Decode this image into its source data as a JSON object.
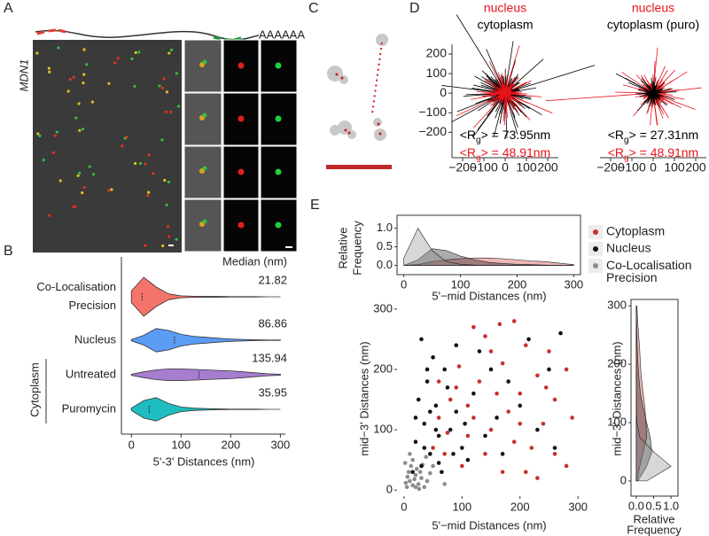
{
  "panel_labels": [
    "A",
    "B",
    "C",
    "D",
    "E"
  ],
  "panel_a": {
    "gene": "MDN1",
    "poly_a": "AAAAAA"
  },
  "chart_data": [
    {
      "type": "violin",
      "header": "Median (nm)",
      "categories": [
        [
          "Co-Localisation",
          "Precision"
        ],
        [
          "Nucleus"
        ],
        [
          "Untreated"
        ],
        [
          "Puromycin"
        ]
      ],
      "group_label": "Cytoplasm",
      "values": [
        21.82,
        86.86,
        135.94,
        35.95
      ],
      "colors": [
        "#f4736b",
        "#5b9cf5",
        "#a77dd0",
        "#1fbdbf"
      ],
      "x": [
        0,
        25,
        50,
        75,
        100,
        125,
        150,
        175,
        200,
        225,
        250,
        275,
        300
      ],
      "densities": [
        [
          0.3,
          1.0,
          0.5,
          0.15,
          0.05,
          0.03,
          0.02,
          0.02,
          0.01,
          0.01,
          0.01,
          0.0,
          0.0
        ],
        [
          0.03,
          0.25,
          0.6,
          0.5,
          0.3,
          0.2,
          0.15,
          0.1,
          0.06,
          0.04,
          0.02,
          0.01,
          0.01
        ],
        [
          0.03,
          0.15,
          0.25,
          0.3,
          0.3,
          0.28,
          0.25,
          0.22,
          0.2,
          0.15,
          0.1,
          0.05,
          0.03
        ],
        [
          0.06,
          0.45,
          0.6,
          0.3,
          0.12,
          0.06,
          0.04,
          0.02,
          0.01,
          0.01,
          0.01,
          0.0,
          0.0
        ]
      ],
      "xlabel": "5'-3' Distances (nm)",
      "xlim": [
        -20,
        310
      ],
      "xticks": [
        0,
        100,
        200,
        300
      ]
    },
    {
      "type": "star",
      "series": [
        {
          "name": "nucleus",
          "color": "#e8141b",
          "rg": 48.91,
          "rg_label": {
            "prefix": "<R",
            "sub": "g",
            "suffix": "> = 48.91nm"
          }
        },
        {
          "name": "cytoplasm",
          "color": "#000000",
          "rg": 73.95,
          "rg_label": {
            "prefix": "<R",
            "sub": "g",
            "suffix": "> = 73.95nm"
          }
        }
      ],
      "xlim": [
        -250,
        250
      ],
      "ylim": [
        -330,
        250
      ],
      "xticks": [
        {
          "value": -200,
          "label": "−200"
        },
        {
          "value": -100,
          "label": "−100"
        },
        0,
        100,
        200
      ],
      "yticks": [
        200,
        100,
        0,
        {
          "value": -100,
          "label": "−100"
        },
        {
          "value": -200,
          "label": "−200"
        }
      ]
    },
    {
      "type": "star",
      "series": [
        {
          "name": "nucleus",
          "color": "#e8141b",
          "rg": 48.91,
          "rg_label": {
            "prefix": "<R",
            "sub": "g",
            "suffix": "> = 48.91nm"
          }
        },
        {
          "name": "cytoplasm (puro)",
          "color": "#000000",
          "rg": 27.31,
          "rg_label": {
            "prefix": "<R",
            "sub": "g",
            "suffix": "> = 27.31nm"
          }
        }
      ],
      "xlim": [
        -250,
        250
      ],
      "ylim": [
        -330,
        250
      ],
      "xticks": [
        {
          "value": -200,
          "label": "−200"
        },
        {
          "value": -100,
          "label": "−100"
        },
        0,
        100,
        200
      ]
    },
    {
      "type": "density",
      "ylabel": [
        "Relative",
        "Frequency"
      ],
      "xlabel": "5'−mid Distances (nm)",
      "x": [
        0,
        25,
        50,
        75,
        100,
        125,
        150,
        175,
        200,
        225,
        250,
        275,
        300
      ],
      "series": [
        {
          "name": "Cytoplasm",
          "color": "#cc2e2e",
          "values": [
            0.0,
            0.02,
            0.1,
            0.15,
            0.18,
            0.2,
            0.2,
            0.18,
            0.15,
            0.12,
            0.1,
            0.06,
            0.02
          ]
        },
        {
          "name": "Nucleus",
          "color": "#111111",
          "values": [
            0.0,
            0.15,
            0.45,
            0.4,
            0.25,
            0.15,
            0.08,
            0.05,
            0.03,
            0.02,
            0.01,
            0.0,
            0.0
          ]
        },
        {
          "name": "Co-Localisation Precision",
          "color": "#8c8c8c",
          "values": [
            0.2,
            1.0,
            0.4,
            0.1,
            0.03,
            0.01,
            0.0,
            0.0,
            0.0,
            0.0,
            0.0,
            0.0,
            0.0
          ]
        }
      ],
      "xlim": [
        -12,
        312
      ],
      "ylim": [
        -0.25,
        1.35
      ],
      "xticks": [
        0,
        100,
        200,
        300
      ],
      "yticks": [
        {
          "value": 0,
          "label": "0.0"
        },
        {
          "value": 0.5,
          "label": "0.5"
        },
        {
          "value": 1,
          "label": "1.0"
        }
      ]
    },
    {
      "type": "scatter",
      "xlabel": "5'−mid Distances (nm)",
      "ylabel": "mid−3' Distances (nm)",
      "series": [
        {
          "color": "#c8302c",
          "x": [
            120,
            165,
            190,
            140,
            210,
            250,
            280,
            230,
            170,
            95,
            130,
            200,
            260,
            290,
            240,
            180,
            150,
            110,
            80,
            60,
            70,
            100,
            140,
            190,
            220,
            260,
            280,
            230,
            170,
            120,
            90,
            60,
            200,
            150,
            75,
            245,
            110,
            160,
            50,
            210
          ],
          "values": [
            270,
            275,
            280,
            255,
            240,
            230,
            200,
            190,
            210,
            205,
            180,
            160,
            150,
            120,
            110,
            130,
            100,
            90,
            150,
            120,
            60,
            40,
            60,
            80,
            70,
            60,
            40,
            20,
            30,
            120,
            170,
            180,
            110,
            230,
            95,
            170,
            140,
            160,
            70,
            30
          ]
        },
        {
          "color": "#111111",
          "x": [
            30,
            50,
            40,
            70,
            25,
            55,
            35,
            60,
            20,
            45,
            80,
            90,
            100,
            30,
            15,
            65,
            110,
            120,
            140,
            150,
            170,
            200,
            230,
            260,
            250,
            90,
            130,
            40,
            75,
            20,
            55,
            85,
            105,
            35,
            60,
            180,
            215,
            270,
            160,
            45
          ],
          "values": [
            250,
            220,
            180,
            200,
            150,
            140,
            110,
            90,
            80,
            60,
            100,
            130,
            70,
            40,
            30,
            30,
            50,
            160,
            90,
            200,
            60,
            140,
            100,
            70,
            200,
            240,
            230,
            200,
            170,
            120,
            100,
            60,
            110,
            70,
            45,
            180,
            250,
            260,
            120,
            130
          ]
        },
        {
          "color": "#8c8c8c",
          "x": [
            5,
            10,
            15,
            20,
            8,
            25,
            12,
            30,
            18,
            22,
            35,
            6,
            28,
            15,
            40,
            3,
            32,
            26,
            45,
            10,
            70,
            50,
            38,
            2,
            20
          ],
          "values": [
            5,
            15,
            8,
            25,
            30,
            10,
            40,
            20,
            18,
            35,
            5,
            22,
            30,
            50,
            15,
            12,
            42,
            2,
            28,
            60,
            10,
            40,
            55,
            45,
            5
          ]
        }
      ],
      "xlim": [
        -12,
        315
      ],
      "ylim": [
        -10,
        313
      ],
      "xticks": [
        0,
        100,
        200,
        300
      ],
      "yticks": [
        0,
        100,
        200,
        300
      ]
    },
    {
      "type": "density",
      "horizontal": true,
      "ylabel": "mid−3' Distances (nm)",
      "xlabel": [
        "Relative",
        "Frequency"
      ],
      "x": [
        0,
        25,
        50,
        75,
        100,
        125,
        150,
        175,
        200,
        225,
        250,
        275,
        300
      ],
      "series": [
        {
          "color": "#cc2e2e",
          "values": [
            0.02,
            0.1,
            0.2,
            0.3,
            0.28,
            0.25,
            0.2,
            0.15,
            0.12,
            0.1,
            0.07,
            0.04,
            0.02
          ]
        },
        {
          "color": "#111111",
          "values": [
            0.05,
            0.3,
            0.45,
            0.4,
            0.3,
            0.2,
            0.12,
            0.08,
            0.05,
            0.03,
            0.02,
            0.01,
            0.0
          ]
        },
        {
          "color": "#8c8c8c",
          "values": [
            0.3,
            1.0,
            0.5,
            0.1,
            0.02,
            0.0,
            0.0,
            0.0,
            0.0,
            0.0,
            0.0,
            0.0,
            0.0
          ]
        }
      ],
      "xlim": [
        -0.15,
        1.2
      ],
      "ylim": [
        -26,
        311
      ],
      "xticks": [
        {
          "value": 0,
          "label": "0.0"
        },
        {
          "value": 0.5,
          "label": "0.5"
        },
        {
          "value": 1,
          "label": "1.0"
        }
      ],
      "yticks": [
        0,
        100,
        200,
        300
      ]
    }
  ]
}
